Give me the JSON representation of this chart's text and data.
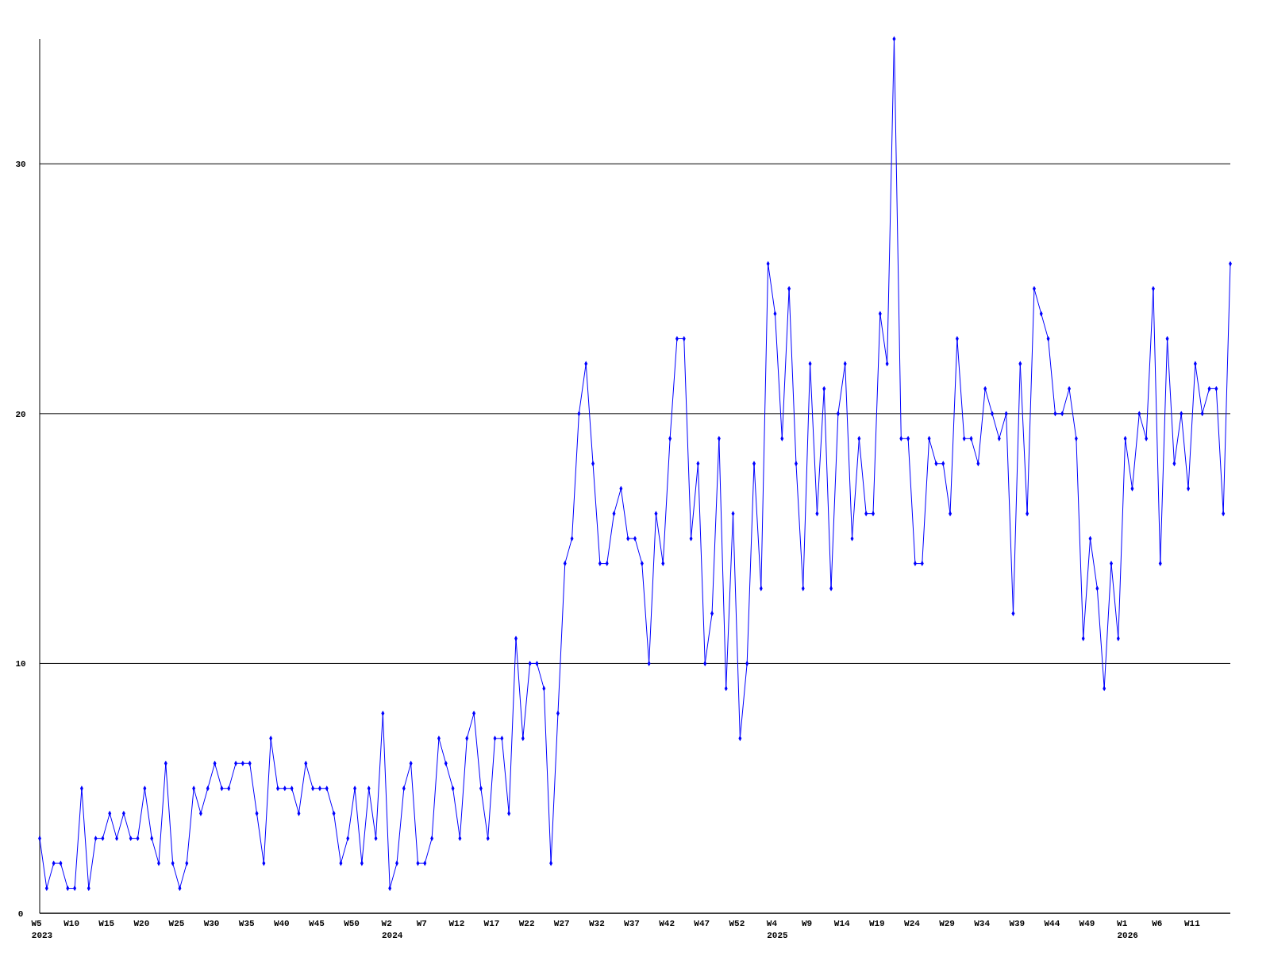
{
  "chart_data": {
    "type": "line",
    "categories": [
      "W5\n2023",
      null,
      null,
      null,
      null,
      "W10",
      null,
      null,
      null,
      null,
      "W15",
      null,
      null,
      null,
      null,
      "W20",
      null,
      null,
      null,
      null,
      "W25",
      null,
      null,
      null,
      null,
      "W30",
      null,
      null,
      null,
      null,
      "W35",
      null,
      null,
      null,
      null,
      "W40",
      null,
      null,
      null,
      null,
      "W45",
      null,
      null,
      null,
      null,
      "W50",
      null,
      null,
      null,
      null,
      "W2\n2024",
      null,
      null,
      null,
      null,
      "W7",
      null,
      null,
      null,
      null,
      "W12",
      null,
      null,
      null,
      null,
      "W17",
      null,
      null,
      null,
      null,
      "W22",
      null,
      null,
      null,
      null,
      "W27",
      null,
      null,
      null,
      null,
      "W32",
      null,
      null,
      null,
      null,
      "W37",
      null,
      null,
      null,
      null,
      "W42",
      null,
      null,
      null,
      null,
      "W47",
      null,
      null,
      null,
      null,
      "W52",
      null,
      null,
      null,
      null,
      "W4\n2025",
      null,
      null,
      null,
      null,
      "W9",
      null,
      null,
      null,
      null,
      "W14",
      null,
      null,
      null,
      null,
      "W19",
      null,
      null,
      null,
      null,
      "W24",
      null,
      null,
      null,
      null,
      "W29",
      null,
      null,
      null,
      null,
      "W34",
      null,
      null,
      null,
      null,
      "W39",
      null,
      null,
      null,
      null,
      "W44",
      null,
      null,
      null,
      null,
      "W49",
      null,
      null,
      null,
      null,
      "W1\n2026",
      null,
      null,
      null,
      null,
      "W6",
      null,
      null,
      null,
      null,
      "W11",
      null,
      null,
      null,
      null,
      null
    ],
    "series": [
      {
        "color": "#0000ff",
        "values": [
          3,
          1,
          2,
          2,
          1,
          1,
          5,
          1,
          3,
          3,
          4,
          3,
          4,
          3,
          3,
          5,
          3,
          2,
          6,
          2,
          1,
          2,
          5,
          4,
          5,
          6,
          5,
          5,
          6,
          6,
          6,
          4,
          2,
          7,
          5,
          5,
          5,
          4,
          6,
          5,
          5,
          5,
          4,
          2,
          3,
          5,
          2,
          5,
          3,
          8,
          1,
          2,
          5,
          6,
          2,
          2,
          3,
          7,
          6,
          5,
          3,
          7,
          8,
          5,
          3,
          7,
          7,
          4,
          11,
          7,
          10,
          10,
          9,
          2,
          8,
          14,
          15,
          20,
          22,
          18,
          14,
          14,
          16,
          17,
          15,
          15,
          14,
          10,
          16,
          14,
          19,
          23,
          23,
          15,
          18,
          10,
          12,
          19,
          9,
          16,
          7,
          10,
          18,
          13,
          26,
          24,
          19,
          25,
          18,
          13,
          22,
          16,
          21,
          13,
          20,
          22,
          15,
          19,
          16,
          16,
          24,
          22,
          35,
          19,
          19,
          14,
          14,
          19,
          18,
          18,
          16,
          23,
          19,
          19,
          18,
          21,
          20,
          19,
          20,
          12,
          22,
          16,
          25,
          24,
          23,
          20,
          20,
          21,
          19,
          11,
          15,
          13,
          9,
          14,
          11,
          19,
          17,
          20,
          19,
          25,
          14,
          23,
          18,
          20,
          17,
          22,
          20,
          21,
          21,
          16,
          26
        ]
      }
    ],
    "ylim": [
      0,
      35
    ],
    "yticks": [
      0,
      10,
      20,
      30
    ],
    "grid": "y",
    "marker": "diamond",
    "line_style": "solid"
  }
}
